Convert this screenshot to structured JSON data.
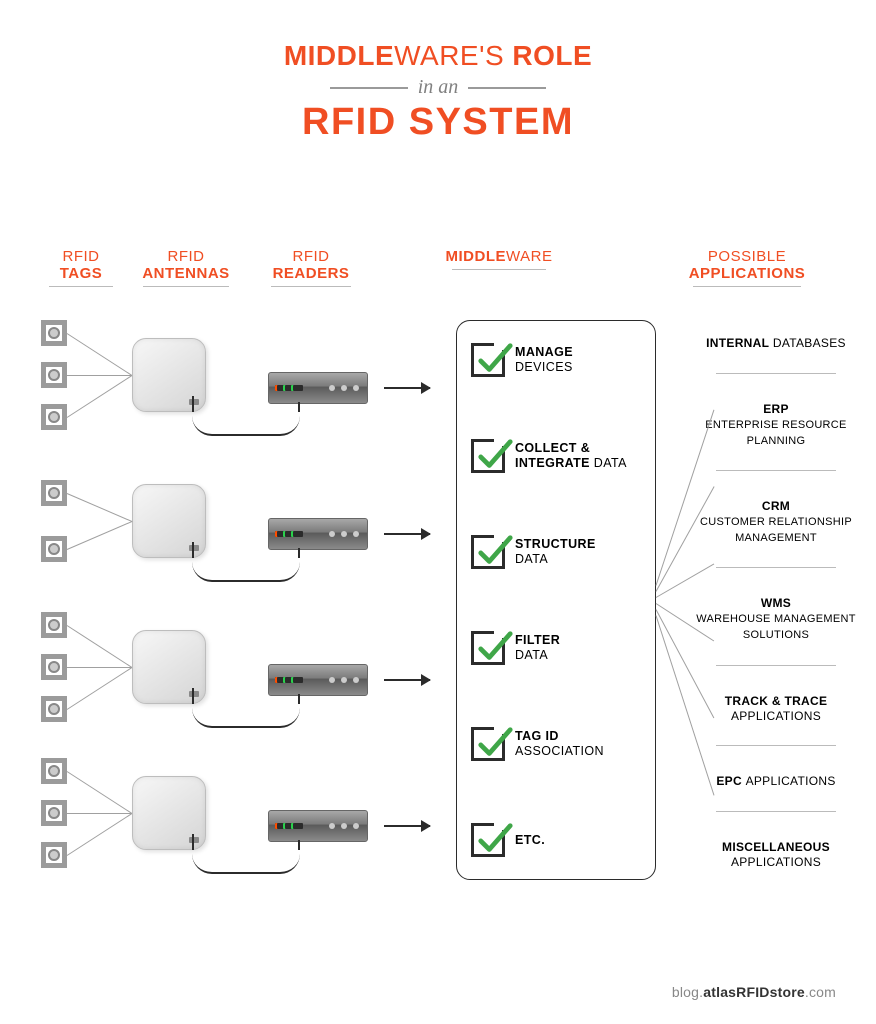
{
  "title": {
    "line1_bold": "MIDDLE",
    "line1_thin": "WARE'S",
    "line1_bold2": "ROLE",
    "sub": "in an",
    "line3": "RFID SYSTEM",
    "color": "#f04e23",
    "sub_color": "#808080",
    "rule_color": "#9a9a9a",
    "line1_fontsize": 28,
    "line3_fontsize": 38
  },
  "columns": {
    "tags": {
      "bold": "TAGS",
      "thin": "RFID"
    },
    "antennas": {
      "bold": "ANTENNAS",
      "thin": "RFID"
    },
    "readers": {
      "bold": "READERS",
      "thin": "RFID"
    },
    "middleware": {
      "bold": "MIDDLE",
      "thin": "WARE"
    },
    "applications": {
      "bold": "APPLICATIONS",
      "thin": "POSSIBLE"
    }
  },
  "structure": {
    "type": "infographic",
    "background_color": "#ffffff",
    "accent_color": "#f04e23",
    "line_color": "#a0a0a0",
    "stroke_color": "#2b2b2b",
    "check_color": "#3fa648",
    "groups": 4,
    "group_spacing": 146,
    "tag_icon_size": 26,
    "antenna_size": 74,
    "reader_size": [
      100,
      32
    ],
    "tag_pattern": [
      {
        "tags": 3,
        "offsets": [
          0,
          42,
          84
        ]
      },
      {
        "tags": 2,
        "offsets": [
          14,
          70
        ]
      },
      {
        "tags": 3,
        "offsets": [
          0,
          42,
          84
        ]
      },
      {
        "tags": 3,
        "offsets": [
          0,
          42,
          84
        ]
      }
    ]
  },
  "middleware": [
    {
      "bold": "MANAGE",
      "light": "DEVICES"
    },
    {
      "bold": "COLLECT &\nINTEGRATE",
      "light": "DATA"
    },
    {
      "bold": "STRUCTURE",
      "light": "DATA"
    },
    {
      "bold": "FILTER",
      "light": "DATA"
    },
    {
      "bold": "TAG ID",
      "light": "ASSOCIATION"
    },
    {
      "bold": "ETC.",
      "light": ""
    }
  ],
  "applications": [
    {
      "bold": "INTERNAL",
      "light": "DATABASES",
      "sub": ""
    },
    {
      "bold": "ERP",
      "light": "",
      "sub": "ENTERPRISE RESOURCE PLANNING"
    },
    {
      "bold": "CRM",
      "light": "",
      "sub": "CUSTOMER RELATIONSHIP MANAGEMENT"
    },
    {
      "bold": "WMS",
      "light": "",
      "sub": "WAREHOUSE MANAGEMENT SOLUTIONS"
    },
    {
      "bold": "TRACK & TRACE",
      "light": "APPLICATIONS",
      "sub": ""
    },
    {
      "bold": "EPC",
      "light": "APPLICATIONS",
      "sub": ""
    },
    {
      "bold": "MISCELLANEOUS",
      "light": "APPLICATIONS",
      "sub": ""
    }
  ],
  "footer": {
    "pre": "blog.",
    "mid": "atlasRFIDstore",
    "post": ".com"
  }
}
